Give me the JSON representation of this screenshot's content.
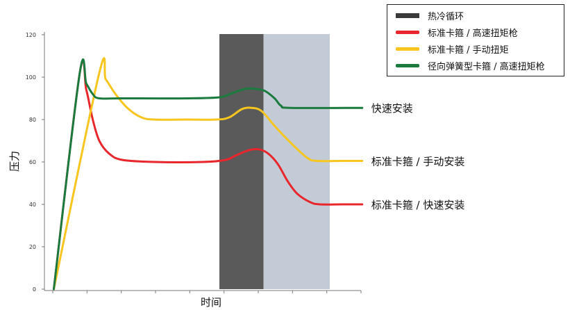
{
  "chart_data": {
    "type": "line",
    "xlabel": "时间",
    "ylabel": "压力",
    "ylim": [
      0,
      120
    ],
    "yticks": [
      0,
      20,
      40,
      60,
      80,
      100,
      120
    ],
    "x_tick_count": 10,
    "grid": false,
    "legend_position": "top-right",
    "shaded_band": {
      "label": "热冷循环",
      "phases": [
        {
          "phase": "hot",
          "x_start": 0.0,
          "x_end": 0.136,
          "color": "#5a5a5a"
        },
        {
          "phase": "cold",
          "x_start": 0.136,
          "x_end": 0.34,
          "color": "#c3ccd6"
        }
      ]
    },
    "series": [
      {
        "name": "标准卡箍 / 高速扭矩枪",
        "color": "#e8262b",
        "end_label": "标准卡箍 / 快速安装",
        "points": [
          [
            -0.51,
            0
          ],
          [
            -0.43,
            102
          ],
          [
            -0.41,
            94
          ],
          [
            -0.39,
            80
          ],
          [
            -0.37,
            70
          ],
          [
            -0.34,
            64
          ],
          [
            -0.3,
            61
          ],
          [
            -0.2,
            60
          ],
          [
            -0.05,
            60
          ],
          [
            0.02,
            61
          ],
          [
            0.05,
            63
          ],
          [
            0.09,
            65.5
          ],
          [
            0.12,
            66
          ],
          [
            0.15,
            64
          ],
          [
            0.18,
            59
          ],
          [
            0.21,
            51
          ],
          [
            0.24,
            45
          ],
          [
            0.28,
            41
          ],
          [
            0.31,
            40
          ],
          [
            0.38,
            40
          ],
          [
            0.44,
            40
          ]
        ]
      },
      {
        "name": "标准卡箍 / 手动扭矩",
        "color": "#f7c51e",
        "end_label": "标准卡箍 / 手动安装",
        "points": [
          [
            -0.51,
            0
          ],
          [
            -0.37,
            102
          ],
          [
            -0.35,
            99
          ],
          [
            -0.32,
            92
          ],
          [
            -0.28,
            85
          ],
          [
            -0.24,
            81
          ],
          [
            -0.2,
            80
          ],
          [
            -0.1,
            80
          ],
          [
            -0.01,
            80
          ],
          [
            0.03,
            81
          ],
          [
            0.07,
            85
          ],
          [
            0.1,
            85.5
          ],
          [
            0.13,
            84
          ],
          [
            0.17,
            77
          ],
          [
            0.22,
            69
          ],
          [
            0.27,
            62
          ],
          [
            0.3,
            60.5
          ],
          [
            0.38,
            60.5
          ],
          [
            0.44,
            60.5
          ]
        ]
      },
      {
        "name": "径向弹簧型卡箍 / 高速扭矩枪",
        "color": "#1b7a3e",
        "end_label": "快速安装",
        "points": [
          [
            -0.51,
            0
          ],
          [
            -0.43,
            102
          ],
          [
            -0.41,
            97
          ],
          [
            -0.39,
            92
          ],
          [
            -0.37,
            90
          ],
          [
            -0.3,
            90
          ],
          [
            -0.1,
            90
          ],
          [
            0.0,
            90.5
          ],
          [
            0.04,
            92.5
          ],
          [
            0.08,
            94.5
          ],
          [
            0.11,
            94.5
          ],
          [
            0.14,
            93.5
          ],
          [
            0.17,
            90
          ],
          [
            0.19,
            86.5
          ],
          [
            0.22,
            85.5
          ],
          [
            0.44,
            85.5
          ]
        ]
      }
    ]
  }
}
